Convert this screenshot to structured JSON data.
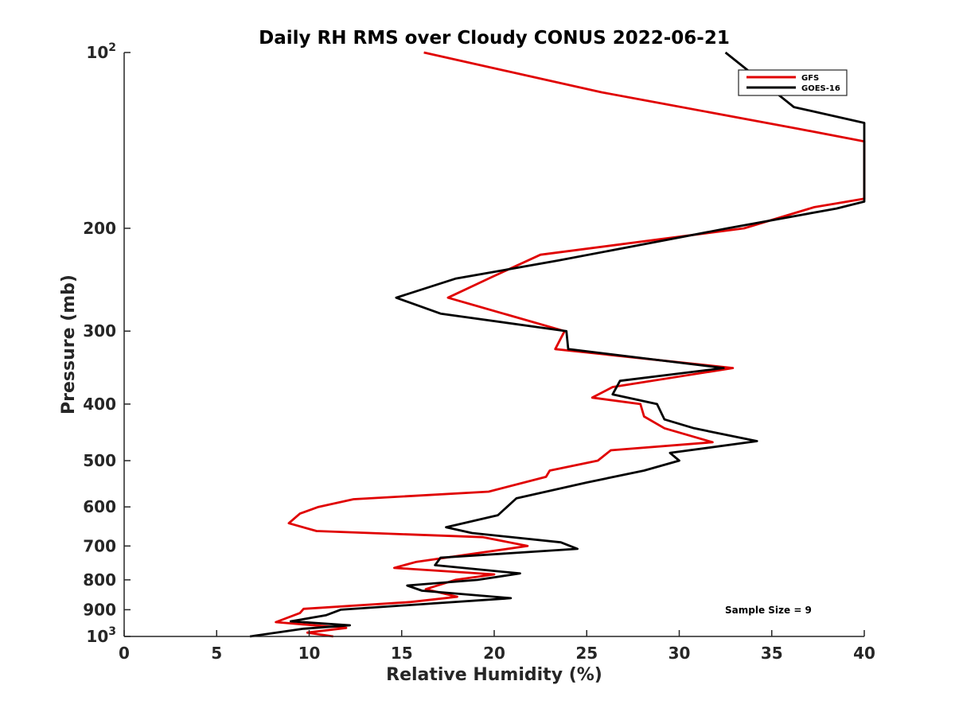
{
  "chart_data": {
    "type": "line",
    "title": "Daily RH RMS over Cloudy CONUS 2022-06-21",
    "xlabel": "Relative Humidity (%)",
    "ylabel": "Pressure (mb)",
    "xlim": [
      0,
      40
    ],
    "ylim": [
      100,
      1000
    ],
    "y_scale": "log",
    "y_reversed": true,
    "grid": false,
    "legend_position": "top-right",
    "x_ticks": [
      {
        "value": 0,
        "label": "0"
      },
      {
        "value": 5,
        "label": "5"
      },
      {
        "value": 10,
        "label": "10"
      },
      {
        "value": 15,
        "label": "15"
      },
      {
        "value": 20,
        "label": "20"
      },
      {
        "value": 25,
        "label": "25"
      },
      {
        "value": 30,
        "label": "30"
      },
      {
        "value": 35,
        "label": "35"
      },
      {
        "value": 40,
        "label": "40"
      }
    ],
    "y_ticks": [
      {
        "value": 100,
        "base": "10",
        "exp": "2"
      },
      {
        "value": 200,
        "label": "200"
      },
      {
        "value": 300,
        "label": "300"
      },
      {
        "value": 400,
        "label": "400"
      },
      {
        "value": 500,
        "label": "500"
      },
      {
        "value": 600,
        "label": "600"
      },
      {
        "value": 700,
        "label": "700"
      },
      {
        "value": 800,
        "label": "800"
      },
      {
        "value": 900,
        "label": "900"
      },
      {
        "value": 1000,
        "base": "10",
        "exp": "3"
      }
    ],
    "annotation": "Sample Size = 9",
    "series": [
      {
        "name": "GFS",
        "color": "#e00000",
        "points": [
          [
            16.2,
            100
          ],
          [
            25.8,
            117
          ],
          [
            36.4,
            135
          ],
          [
            40,
            142
          ],
          [
            40,
            178
          ],
          [
            37.3,
            184
          ],
          [
            33.5,
            200
          ],
          [
            22.5,
            222
          ],
          [
            19.8,
            243
          ],
          [
            17.5,
            263
          ],
          [
            23.8,
            300
          ],
          [
            23.3,
            322
          ],
          [
            32.9,
            347
          ],
          [
            26.4,
            374
          ],
          [
            25.3,
            390
          ],
          [
            27.9,
            400
          ],
          [
            28.1,
            420
          ],
          [
            29.2,
            440
          ],
          [
            31.8,
            465
          ],
          [
            26.3,
            480
          ],
          [
            25.6,
            500
          ],
          [
            23.0,
            520
          ],
          [
            22.8,
            533
          ],
          [
            19.7,
            565
          ],
          [
            12.4,
            582
          ],
          [
            10.5,
            600
          ],
          [
            9.5,
            616
          ],
          [
            8.9,
            640
          ],
          [
            10.4,
            660
          ],
          [
            19.4,
            676
          ],
          [
            21.8,
            700
          ],
          [
            19.1,
            720
          ],
          [
            15.8,
            745
          ],
          [
            14.6,
            763
          ],
          [
            20.0,
            783
          ],
          [
            17.9,
            800
          ],
          [
            16.3,
            830
          ],
          [
            18.0,
            855
          ],
          [
            15.5,
            873
          ],
          [
            9.7,
            897
          ],
          [
            9.5,
            912
          ],
          [
            8.2,
            945
          ],
          [
            12.0,
            967
          ],
          [
            9.9,
            985
          ],
          [
            11.3,
            1000
          ]
        ]
      },
      {
        "name": "GOES-16",
        "color": "#000000",
        "points": [
          [
            32.5,
            100
          ],
          [
            36.2,
            124
          ],
          [
            40,
            132
          ],
          [
            40,
            180
          ],
          [
            38.5,
            185
          ],
          [
            32.6,
            200
          ],
          [
            23.5,
            227
          ],
          [
            17.9,
            244
          ],
          [
            14.7,
            263
          ],
          [
            17.1,
            280
          ],
          [
            23.9,
            300
          ],
          [
            24.0,
            322
          ],
          [
            32.4,
            347
          ],
          [
            26.8,
            365
          ],
          [
            26.4,
            385
          ],
          [
            28.8,
            400
          ],
          [
            29.2,
            425
          ],
          [
            30.8,
            440
          ],
          [
            34.2,
            463
          ],
          [
            29.5,
            485
          ],
          [
            30.0,
            500
          ],
          [
            28.1,
            520
          ],
          [
            25.0,
            545
          ],
          [
            21.2,
            580
          ],
          [
            20.2,
            620
          ],
          [
            17.4,
            650
          ],
          [
            18.8,
            665
          ],
          [
            23.6,
            690
          ],
          [
            24.5,
            708
          ],
          [
            17.1,
            733
          ],
          [
            16.8,
            755
          ],
          [
            21.4,
            780
          ],
          [
            19.1,
            800
          ],
          [
            15.3,
            818
          ],
          [
            16.1,
            835
          ],
          [
            20.9,
            860
          ],
          [
            16.7,
            878
          ],
          [
            11.7,
            900
          ],
          [
            10.9,
            920
          ],
          [
            9.0,
            942
          ],
          [
            12.2,
            957
          ],
          [
            9.7,
            970
          ],
          [
            6.8,
            1000
          ]
        ]
      }
    ]
  }
}
